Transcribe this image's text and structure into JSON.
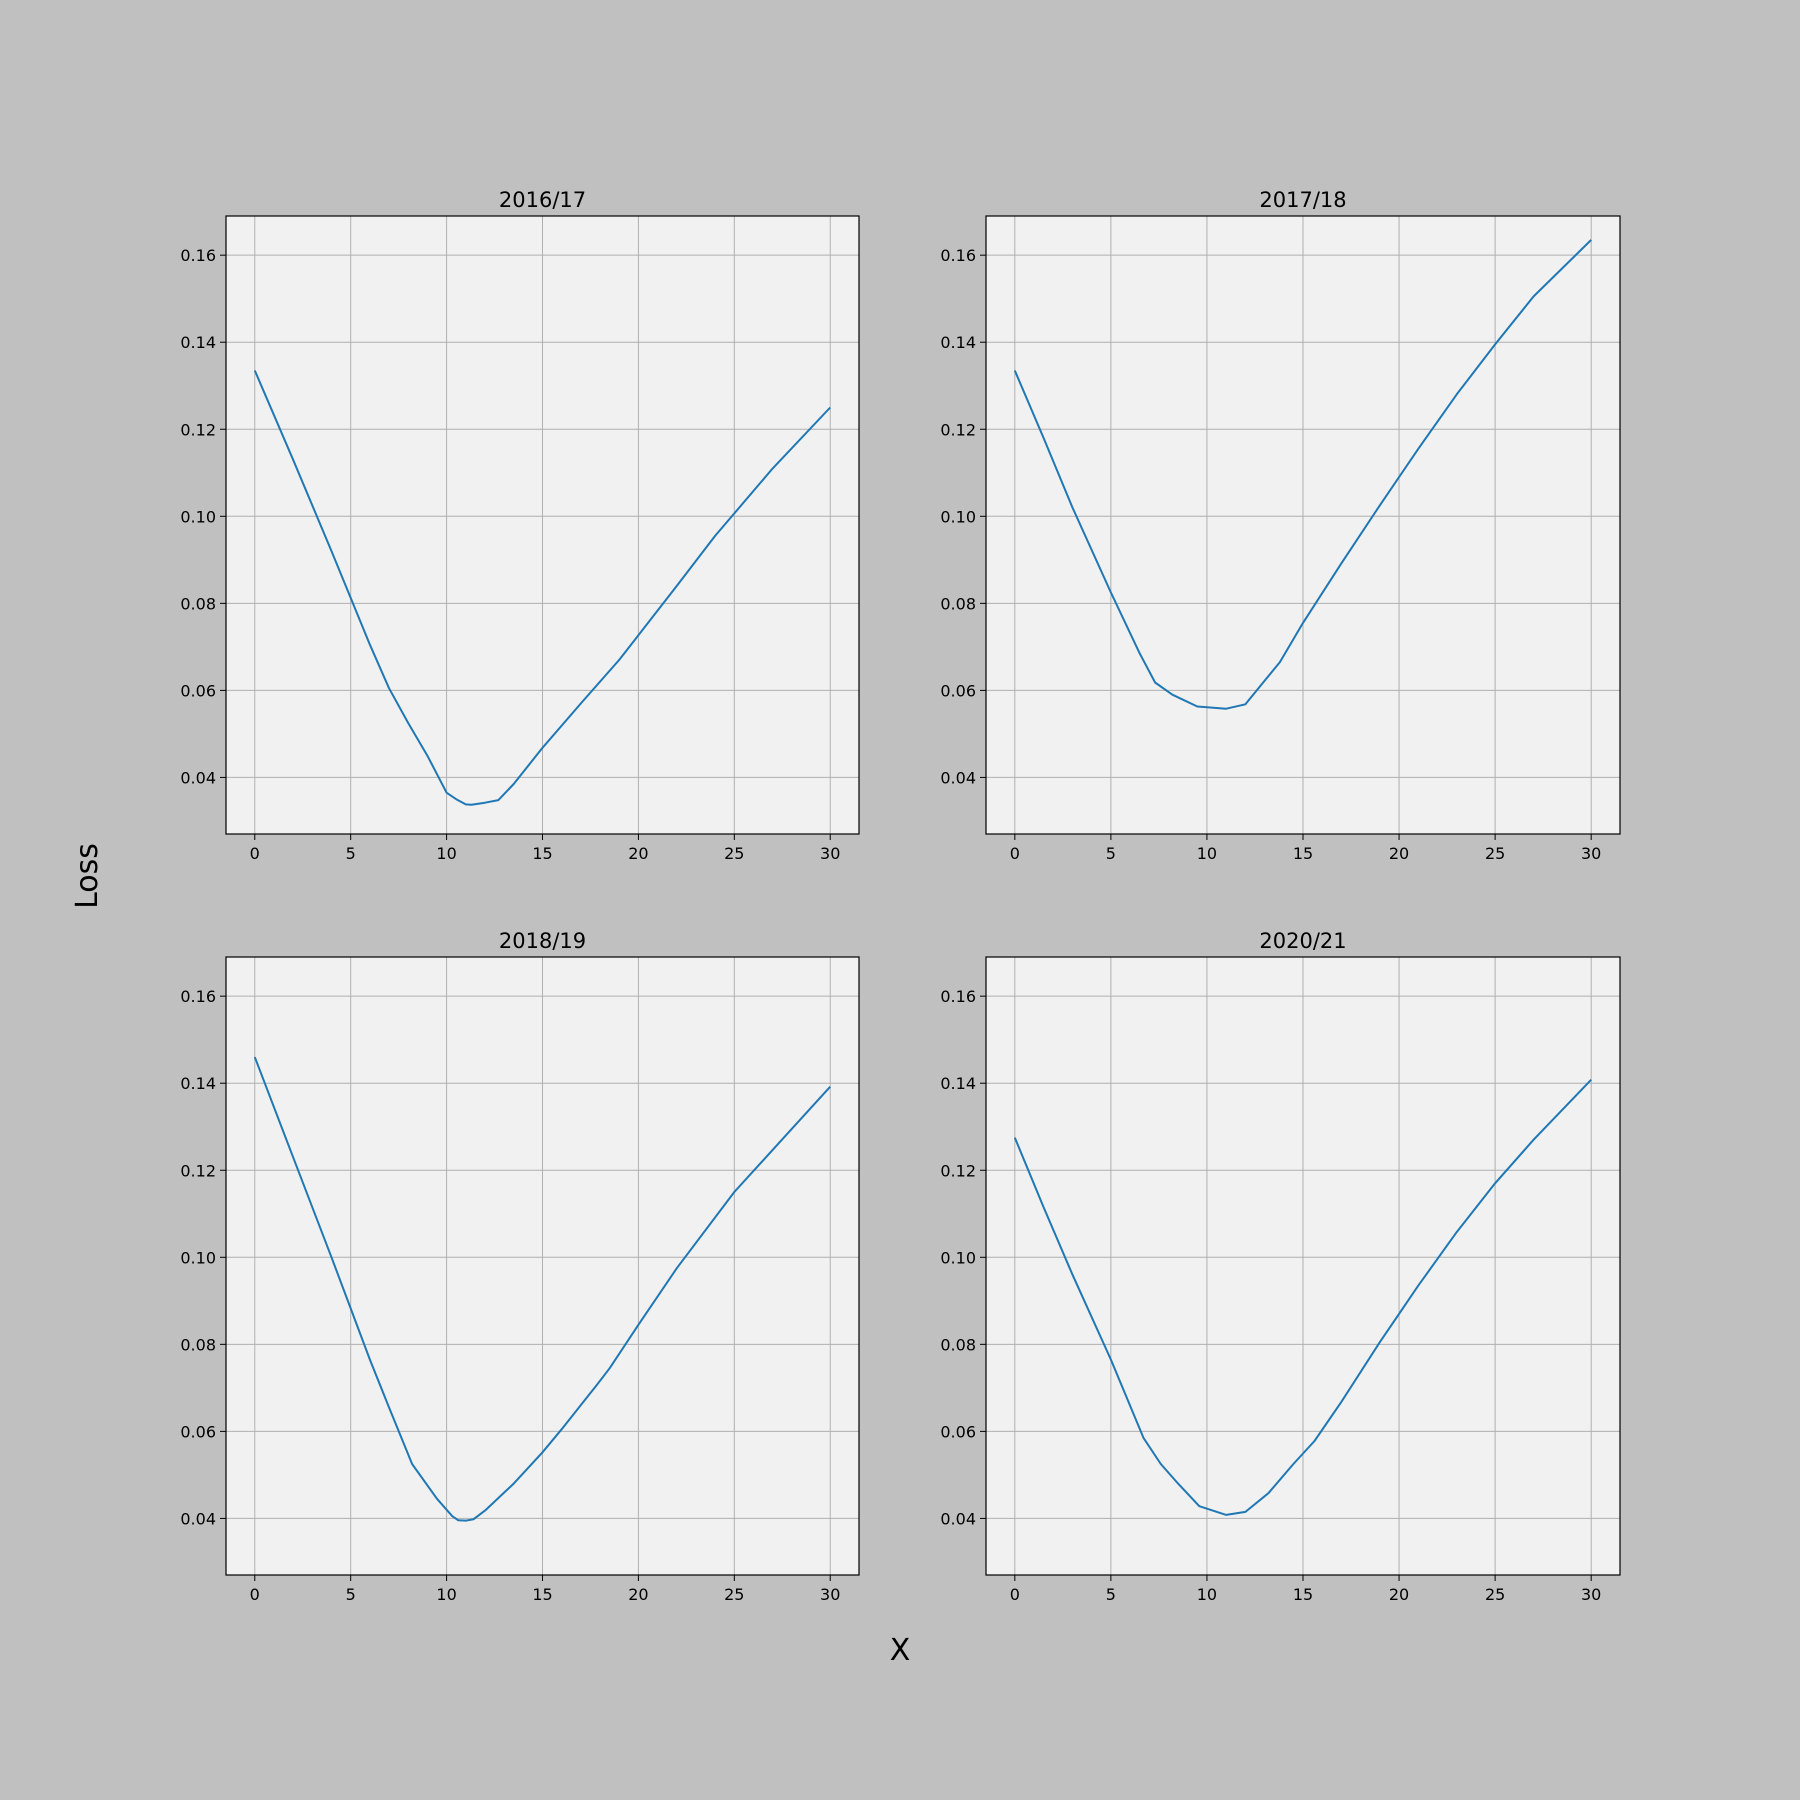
{
  "figure": {
    "xlabel": "X",
    "ylabel": "Loss",
    "colors": {
      "background": "#c0c0c0",
      "axes_face": "#f1f1f1",
      "grid": "#b0b0b0",
      "line": "#1f77b4",
      "text": "#000000"
    }
  },
  "chart_data": [
    {
      "type": "line",
      "title": "2016/17",
      "xlim": [
        -1.5,
        31.5
      ],
      "ylim": [
        0.027,
        0.169
      ],
      "xticks": [
        0,
        5,
        10,
        15,
        20,
        25,
        30
      ],
      "yticks": [
        0.04,
        0.06,
        0.08,
        0.1,
        0.12,
        0.14,
        0.16
      ],
      "grid": true,
      "series": [
        {
          "x": [
            0,
            2,
            4,
            6,
            7,
            8,
            9,
            10,
            10.5,
            11,
            11.3,
            12,
            12.7,
            13.5,
            15,
            17,
            19,
            22,
            24,
            27,
            30
          ],
          "y": [
            0.1335,
            0.113,
            0.092,
            0.0705,
            0.0605,
            0.0525,
            0.045,
            0.0365,
            0.035,
            0.0338,
            0.0337,
            0.0342,
            0.0348,
            0.0385,
            0.0468,
            0.057,
            0.067,
            0.084,
            0.0955,
            0.111,
            0.125
          ]
        }
      ]
    },
    {
      "type": "line",
      "title": "2017/18",
      "xlim": [
        -1.5,
        31.5
      ],
      "ylim": [
        0.027,
        0.169
      ],
      "xticks": [
        0,
        5,
        10,
        15,
        20,
        25,
        30
      ],
      "yticks": [
        0.04,
        0.06,
        0.08,
        0.1,
        0.12,
        0.14,
        0.16
      ],
      "grid": true,
      "series": [
        {
          "x": [
            0,
            1.5,
            3,
            5,
            6.5,
            7.3,
            8.2,
            9.5,
            11,
            12,
            13,
            13.8,
            15,
            17,
            19,
            21,
            23,
            25,
            27,
            30
          ],
          "y": [
            0.1335,
            0.118,
            0.102,
            0.0825,
            0.0685,
            0.0618,
            0.059,
            0.0563,
            0.0558,
            0.0568,
            0.0622,
            0.0665,
            0.0755,
            0.0892,
            0.1025,
            0.1155,
            0.128,
            0.1395,
            0.1505,
            0.1635
          ]
        }
      ]
    },
    {
      "type": "line",
      "title": "2018/19",
      "xlim": [
        -1.5,
        31.5
      ],
      "ylim": [
        0.027,
        0.169
      ],
      "xticks": [
        0,
        5,
        10,
        15,
        20,
        25,
        30
      ],
      "yticks": [
        0.04,
        0.06,
        0.08,
        0.1,
        0.12,
        0.14,
        0.16
      ],
      "grid": true,
      "series": [
        {
          "x": [
            0,
            2,
            4,
            6,
            7,
            8.2,
            9.5,
            10.3,
            10.6,
            11,
            11.4,
            12,
            13.5,
            15,
            16,
            17.8,
            18.5,
            20,
            22,
            25,
            30
          ],
          "y": [
            0.146,
            0.123,
            0.1,
            0.0765,
            0.0655,
            0.0525,
            0.0445,
            0.0405,
            0.0396,
            0.0395,
            0.0398,
            0.0418,
            0.048,
            0.0552,
            0.0605,
            0.0705,
            0.0745,
            0.0845,
            0.0975,
            0.115,
            0.1392
          ]
        }
      ]
    },
    {
      "type": "line",
      "title": "2020/21",
      "xlim": [
        -1.5,
        31.5
      ],
      "ylim": [
        0.027,
        0.169
      ],
      "xticks": [
        0,
        5,
        10,
        15,
        20,
        25,
        30
      ],
      "yticks": [
        0.04,
        0.06,
        0.08,
        0.1,
        0.12,
        0.14,
        0.16
      ],
      "grid": true,
      "series": [
        {
          "x": [
            0,
            1.5,
            3,
            5,
            6.7,
            7.6,
            8.5,
            9.6,
            11,
            12,
            13.2,
            14.5,
            15.6,
            17,
            19,
            21,
            23,
            25,
            27,
            30
          ],
          "y": [
            0.1275,
            0.1115,
            0.096,
            0.0765,
            0.0585,
            0.0525,
            0.048,
            0.0428,
            0.0408,
            0.0415,
            0.0458,
            0.0525,
            0.0578,
            0.0668,
            0.0805,
            0.0935,
            0.1058,
            0.117,
            0.127,
            0.1408
          ]
        }
      ]
    }
  ]
}
